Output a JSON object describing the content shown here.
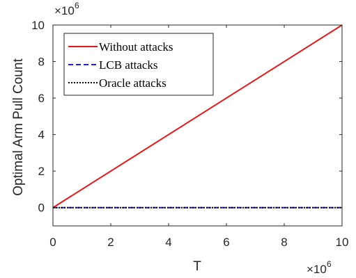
{
  "chart_data": {
    "type": "line",
    "xlabel": "T",
    "ylabel": "Optimal Arm Pull Count",
    "xlim": [
      0,
      10
    ],
    "ylim": [
      -1,
      10
    ],
    "x_ticks": [
      0,
      2,
      4,
      6,
      8,
      10
    ],
    "y_ticks": [
      0,
      2,
      4,
      6,
      8,
      10
    ],
    "x_multiplier": {
      "base": "×10",
      "exp": "6"
    },
    "y_multiplier": {
      "base": "×10",
      "exp": "6"
    },
    "grid": false,
    "legend_position": "top-left",
    "series": [
      {
        "name": "Without attacks",
        "x": [
          0,
          10
        ],
        "y": [
          0,
          10
        ],
        "color": "#e31a1c",
        "dash": "solid"
      },
      {
        "name": "LCB attacks",
        "x": [
          0,
          10
        ],
        "y": [
          0,
          0
        ],
        "color": "#1f1fd6",
        "dash": "dashed"
      },
      {
        "name": "Oracle attacks",
        "x": [
          0,
          10
        ],
        "y": [
          0,
          0
        ],
        "color": "#000000",
        "dash": "dotted"
      }
    ]
  }
}
